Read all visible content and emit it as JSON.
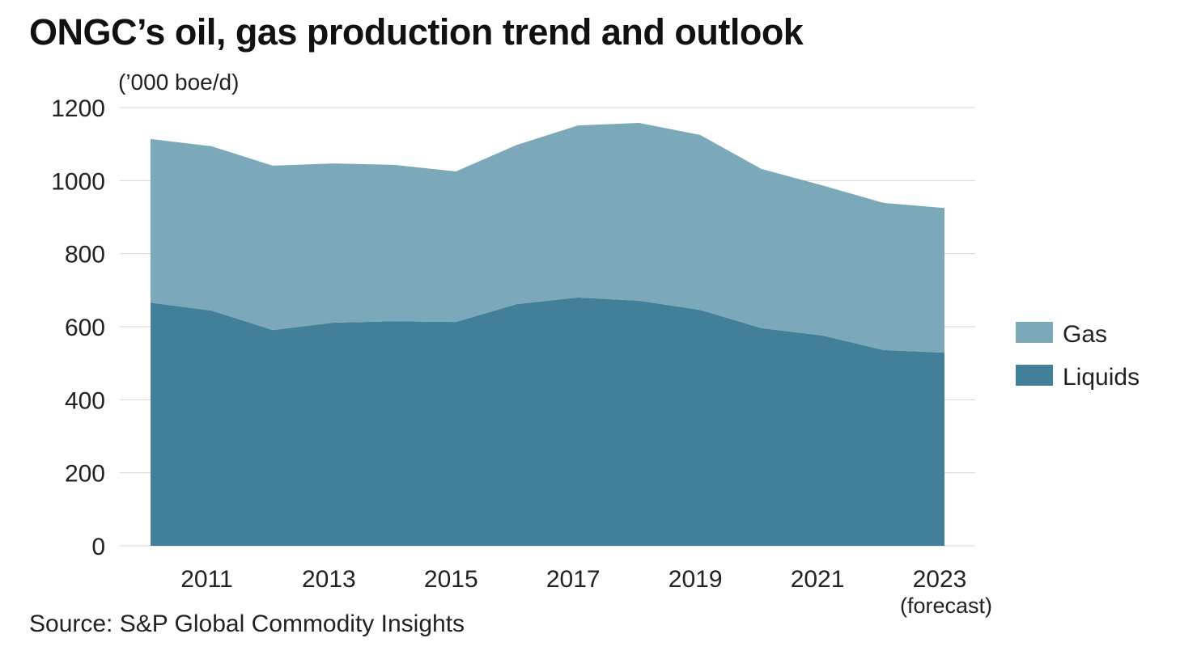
{
  "title": "ONGC’s oil, gas production trend and outlook",
  "source": "Source: S&P Global Commodity Insights",
  "chart_data": {
    "type": "area",
    "stacked": true,
    "title": "ONGC’s oil, gas production trend and outlook",
    "ylabel": "(’000 boe/d)",
    "xlabel": "",
    "x": [
      2010,
      2011,
      2012,
      2013,
      2014,
      2015,
      2016,
      2017,
      2018,
      2019,
      2020,
      2021,
      2022,
      2023
    ],
    "x_tick_labels": [
      {
        "year": 2011,
        "label": "2011"
      },
      {
        "year": 2013,
        "label": "2013"
      },
      {
        "year": 2015,
        "label": "2015"
      },
      {
        "year": 2017,
        "label": "2017"
      },
      {
        "year": 2019,
        "label": "2019"
      },
      {
        "year": 2021,
        "label": "2021"
      },
      {
        "year": 2023,
        "label": "2023",
        "sublabel": "(forecast)"
      }
    ],
    "ylim": [
      0,
      1200
    ],
    "y_ticks": [
      0,
      200,
      400,
      600,
      800,
      1000,
      1200
    ],
    "grid": true,
    "legend_position": "right",
    "series": [
      {
        "name": "Liquids",
        "color": "#427F98",
        "values": [
          666,
          644,
          591,
          611,
          615,
          613,
          662,
          680,
          671,
          646,
          596,
          576,
          536,
          529
        ]
      },
      {
        "name": "Gas",
        "color": "#7BA9B9",
        "values": [
          448,
          450,
          450,
          436,
          428,
          412,
          436,
          471,
          487,
          479,
          436,
          411,
          403,
          396
        ]
      }
    ],
    "legend_order": [
      "Gas",
      "Liquids"
    ]
  }
}
